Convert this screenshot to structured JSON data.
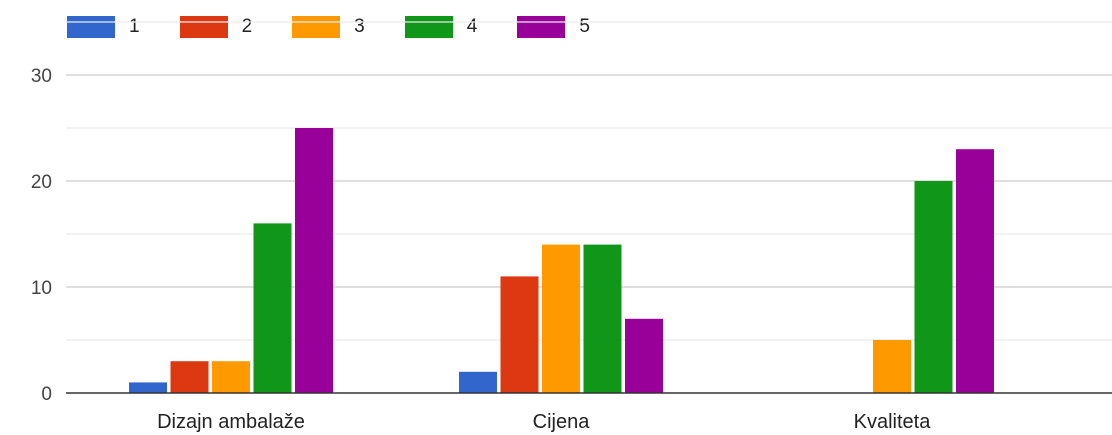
{
  "chart_data": {
    "type": "bar",
    "categories": [
      "Dizajn ambalaže",
      "Cijena",
      "Kvaliteta"
    ],
    "series": [
      {
        "name": "1",
        "values": [
          1,
          2,
          0
        ],
        "color": "#3366cc"
      },
      {
        "name": "2",
        "values": [
          3,
          11,
          0
        ],
        "color": "#dc3912"
      },
      {
        "name": "3",
        "values": [
          3,
          14,
          5
        ],
        "color": "#ff9900"
      },
      {
        "name": "4",
        "values": [
          16,
          14,
          20
        ],
        "color": "#109618"
      },
      {
        "name": "5",
        "values": [
          25,
          7,
          23
        ],
        "color": "#990099"
      }
    ],
    "yticks": [
      "0",
      "10",
      "20",
      "30"
    ],
    "ylim": [
      0,
      35
    ],
    "grid": true,
    "legend_position": "top-left"
  }
}
